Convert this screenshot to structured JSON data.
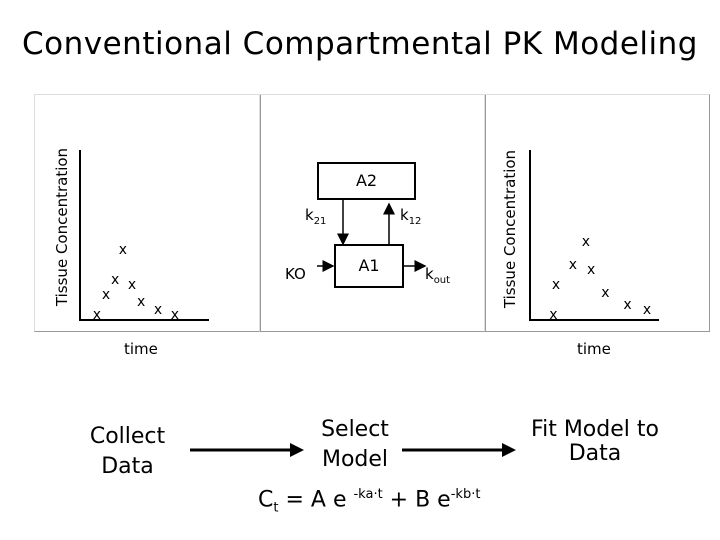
{
  "title": "Conventional Compartmental PK Modeling",
  "left_plot": {
    "ylabel": "Tissue Concentration",
    "xlabel": "time",
    "marker": "x",
    "points": [
      [
        0.13,
        0.05
      ],
      [
        0.2,
        0.25
      ],
      [
        0.27,
        0.4
      ],
      [
        0.33,
        0.7
      ],
      [
        0.4,
        0.35
      ],
      [
        0.47,
        0.18
      ],
      [
        0.6,
        0.1
      ],
      [
        0.73,
        0.05
      ]
    ]
  },
  "model": {
    "a2": "A2",
    "a1": "A1",
    "k21": "k",
    "k21_sub": "21",
    "k12": "k",
    "k12_sub": "12",
    "ko": "KO",
    "kout": "k",
    "kout_sub": "out"
  },
  "right_plot": {
    "ylabel": "Tissue Concentration",
    "xlabel": "time",
    "marker": "x",
    "points": [
      [
        0.18,
        0.05
      ],
      [
        0.2,
        0.35
      ],
      [
        0.33,
        0.55
      ],
      [
        0.43,
        0.78
      ],
      [
        0.47,
        0.5
      ],
      [
        0.58,
        0.27
      ],
      [
        0.75,
        0.15
      ],
      [
        0.9,
        0.1
      ]
    ]
  },
  "steps": {
    "collect_line1": "Collect",
    "collect_line2": "Data",
    "select_line1": "Select",
    "select_line2": "Model",
    "fit_line1": "Fit Model to",
    "fit_line2": "Data"
  },
  "equation": {
    "lhs": "C",
    "lhs_sub": "t",
    "eq": " = A e ",
    "exp1": "-ka·t",
    "mid": " + B e",
    "exp2": "-kb·t"
  }
}
